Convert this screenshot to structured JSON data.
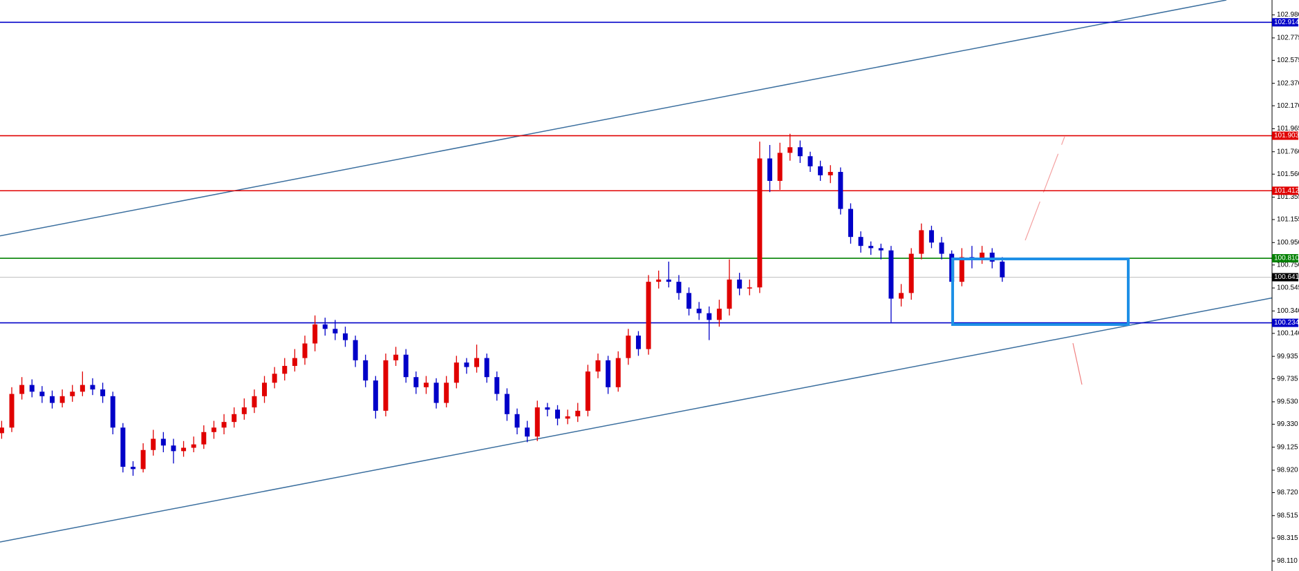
{
  "chart_data": {
    "type": "candlestick",
    "up_color": "#e00000",
    "down_color": "#0000c8",
    "ylim": [
      98.021,
      103.113
    ],
    "yticks": [
      {
        "value": 102.98,
        "label": "102.980"
      },
      {
        "value": 102.775,
        "label": "102.775"
      },
      {
        "value": 102.575,
        "label": "102.575"
      },
      {
        "value": 102.37,
        "label": "102.370"
      },
      {
        "value": 102.17,
        "label": "102.170"
      },
      {
        "value": 101.965,
        "label": "101.965"
      },
      {
        "value": 101.76,
        "label": "101.760"
      },
      {
        "value": 101.56,
        "label": "101.560"
      },
      {
        "value": 101.355,
        "label": "101.355"
      },
      {
        "value": 101.155,
        "label": "101.155"
      },
      {
        "value": 100.95,
        "label": "100.950"
      },
      {
        "value": 100.75,
        "label": "100.750"
      },
      {
        "value": 100.545,
        "label": "100.545"
      },
      {
        "value": 100.34,
        "label": "100.340"
      },
      {
        "value": 100.14,
        "label": "100.140"
      },
      {
        "value": 99.935,
        "label": "99.935"
      },
      {
        "value": 99.735,
        "label": "99.735"
      },
      {
        "value": 99.53,
        "label": "99.530"
      },
      {
        "value": 99.33,
        "label": "99.330"
      },
      {
        "value": 99.125,
        "label": "99.125"
      },
      {
        "value": 98.92,
        "label": "98.920"
      },
      {
        "value": 98.72,
        "label": "98.720"
      },
      {
        "value": 98.515,
        "label": "98.515"
      },
      {
        "value": 98.315,
        "label": "98.315"
      },
      {
        "value": 98.11,
        "label": "98.110"
      }
    ],
    "levels": [
      {
        "value": 102.914,
        "label": "102.914",
        "color": "#0000c8"
      },
      {
        "value": 101.903,
        "label": "101.903",
        "color": "#e00000"
      },
      {
        "value": 101.412,
        "label": "101.412",
        "color": "#e00000"
      },
      {
        "value": 100.81,
        "label": "100.810",
        "color": "#008000"
      },
      {
        "value": 100.641,
        "label": "100.641",
        "color": "#000000"
      },
      {
        "value": 100.234,
        "label": "100.234",
        "color": "#0000c8"
      }
    ],
    "open": [
      99.25,
      99.3,
      99.6,
      99.68,
      99.62,
      99.58,
      99.52,
      99.58,
      99.62,
      99.68,
      99.64,
      99.58,
      99.3,
      98.95,
      98.93,
      99.1,
      99.2,
      99.14,
      99.09,
      99.12,
      99.15,
      99.26,
      99.3,
      99.35,
      99.42,
      99.48,
      99.58,
      99.7,
      99.78,
      99.85,
      99.92,
      100.05,
      100.22,
      100.18,
      100.14,
      100.08,
      99.9,
      99.72,
      99.45,
      99.9,
      99.95,
      99.75,
      99.66,
      99.7,
      99.52,
      99.7,
      99.88,
      99.84,
      99.92,
      99.75,
      99.6,
      99.42,
      99.3,
      99.22,
      99.48,
      99.46,
      99.38,
      99.4,
      99.45,
      99.8,
      99.9,
      99.66,
      99.92,
      100.12,
      100.0,
      100.6,
      100.62,
      100.6,
      100.5,
      100.36,
      100.32,
      100.26,
      100.36,
      100.62,
      100.54,
      100.55,
      101.7,
      101.5,
      101.75,
      101.8,
      101.72,
      101.63,
      101.55,
      101.58,
      101.25,
      101.0,
      100.92,
      100.9,
      100.88,
      100.45,
      100.5,
      100.85,
      101.06,
      100.95,
      100.85,
      100.6,
      100.82,
      100.8,
      100.86,
      100.78
    ],
    "high": [
      99.36,
      99.66,
      99.75,
      99.73,
      99.67,
      99.63,
      99.64,
      99.68,
      99.8,
      99.74,
      99.7,
      99.62,
      99.34,
      99.0,
      99.16,
      99.28,
      99.26,
      99.2,
      99.18,
      99.22,
      99.32,
      99.36,
      99.42,
      99.48,
      99.56,
      99.64,
      99.76,
      99.84,
      99.92,
      100.0,
      100.12,
      100.3,
      100.28,
      100.26,
      100.2,
      100.12,
      99.95,
      99.76,
      99.96,
      100.02,
      100.0,
      99.8,
      99.76,
      99.74,
      99.76,
      99.94,
      99.92,
      100.04,
      99.96,
      99.8,
      99.65,
      99.47,
      99.36,
      99.54,
      99.52,
      99.5,
      99.46,
      99.52,
      99.86,
      99.96,
      99.94,
      99.98,
      100.18,
      100.16,
      100.66,
      100.7,
      100.78,
      100.66,
      100.55,
      100.42,
      100.38,
      100.44,
      100.8,
      100.68,
      100.62,
      101.85,
      101.82,
      101.84,
      101.92,
      101.86,
      101.76,
      101.68,
      101.64,
      101.62,
      101.3,
      101.05,
      100.96,
      100.94,
      100.92,
      100.58,
      100.9,
      101.12,
      101.1,
      101.0,
      100.88,
      100.9,
      100.92,
      100.92,
      100.9,
      100.82
    ],
    "low": [
      99.2,
      99.26,
      99.55,
      99.57,
      99.52,
      99.47,
      99.48,
      99.53,
      99.58,
      99.59,
      99.52,
      99.24,
      98.9,
      98.87,
      98.9,
      99.05,
      99.08,
      98.98,
      99.04,
      99.08,
      99.11,
      99.2,
      99.24,
      99.3,
      99.37,
      99.43,
      99.52,
      99.65,
      99.72,
      99.8,
      99.86,
      99.98,
      100.12,
      100.08,
      100.02,
      99.84,
      99.66,
      99.38,
      99.4,
      99.85,
      99.7,
      99.6,
      99.6,
      99.47,
      99.48,
      99.65,
      99.78,
      99.79,
      99.7,
      99.54,
      99.36,
      99.24,
      99.17,
      99.18,
      99.4,
      99.32,
      99.33,
      99.35,
      99.4,
      99.74,
      99.6,
      99.62,
      99.86,
      99.94,
      99.95,
      100.54,
      100.55,
      100.44,
      100.3,
      100.26,
      100.08,
      100.2,
      100.3,
      100.48,
      100.48,
      100.5,
      101.4,
      101.42,
      101.68,
      101.66,
      101.58,
      101.5,
      101.48,
      101.2,
      100.94,
      100.86,
      100.84,
      100.8,
      100.24,
      100.38,
      100.44,
      100.8,
      100.9,
      100.8,
      100.52,
      100.56,
      100.72,
      100.76,
      100.72,
      100.6
    ],
    "close": [
      99.3,
      99.6,
      99.68,
      99.62,
      99.58,
      99.52,
      99.58,
      99.62,
      99.68,
      99.64,
      99.58,
      99.3,
      98.95,
      98.93,
      99.1,
      99.2,
      99.14,
      99.09,
      99.12,
      99.15,
      99.26,
      99.3,
      99.35,
      99.42,
      99.48,
      99.58,
      99.7,
      99.78,
      99.85,
      99.92,
      100.05,
      100.22,
      100.18,
      100.14,
      100.08,
      99.9,
      99.72,
      99.45,
      99.9,
      99.95,
      99.75,
      99.66,
      99.7,
      99.52,
      99.7,
      99.88,
      99.84,
      99.92,
      99.75,
      99.6,
      99.42,
      99.3,
      99.22,
      99.48,
      99.46,
      99.38,
      99.4,
      99.45,
      99.8,
      99.9,
      99.66,
      99.92,
      100.12,
      100.0,
      100.6,
      100.62,
      100.6,
      100.5,
      100.36,
      100.32,
      100.26,
      100.36,
      100.62,
      100.54,
      100.55,
      101.7,
      101.5,
      101.75,
      101.8,
      101.72,
      101.63,
      101.55,
      101.58,
      101.25,
      101.0,
      100.92,
      100.9,
      100.88,
      100.45,
      100.5,
      100.85,
      101.06,
      100.95,
      100.85,
      100.6,
      100.82,
      100.8,
      100.86,
      100.78,
      100.64
    ]
  }
}
